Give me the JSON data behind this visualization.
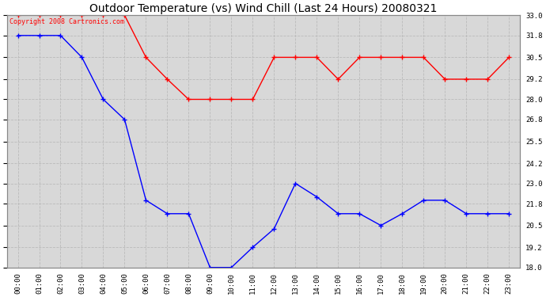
{
  "title": "Outdoor Temperature (vs) Wind Chill (Last 24 Hours) 20080321",
  "copyright": "Copyright 2008 Cartronics.com",
  "x_labels": [
    "00:00",
    "01:00",
    "02:00",
    "03:00",
    "04:00",
    "05:00",
    "06:00",
    "07:00",
    "08:00",
    "09:00",
    "10:00",
    "11:00",
    "12:00",
    "13:00",
    "14:00",
    "15:00",
    "16:00",
    "17:00",
    "18:00",
    "19:00",
    "20:00",
    "21:00",
    "22:00",
    "23:00"
  ],
  "temp_data": [
    33.0,
    33.0,
    33.0,
    33.0,
    33.0,
    33.0,
    30.5,
    29.2,
    28.0,
    28.0,
    28.0,
    28.0,
    30.5,
    30.5,
    30.5,
    29.2,
    30.5,
    30.5,
    30.5,
    30.5,
    29.2,
    29.2,
    29.2,
    30.5
  ],
  "wind_chill_data": [
    31.8,
    31.8,
    31.8,
    30.5,
    28.0,
    26.8,
    22.0,
    21.2,
    21.2,
    18.0,
    18.0,
    19.2,
    20.3,
    23.0,
    22.2,
    21.2,
    21.2,
    20.5,
    21.2,
    22.0,
    22.0,
    21.2,
    21.2,
    21.2
  ],
  "temp_color": "#ff0000",
  "wind_chill_color": "#0000ff",
  "bg_color": "#ffffff",
  "plot_bg_color": "#d8d8d8",
  "grid_color": "#bbbbbb",
  "ylim_min": 18.0,
  "ylim_max": 33.0,
  "yticks": [
    18.0,
    19.2,
    20.5,
    21.8,
    23.0,
    24.2,
    25.5,
    26.8,
    28.0,
    29.2,
    30.5,
    31.8,
    33.0
  ],
  "title_fontsize": 10,
  "tick_fontsize": 6.5,
  "copyright_fontsize": 6
}
